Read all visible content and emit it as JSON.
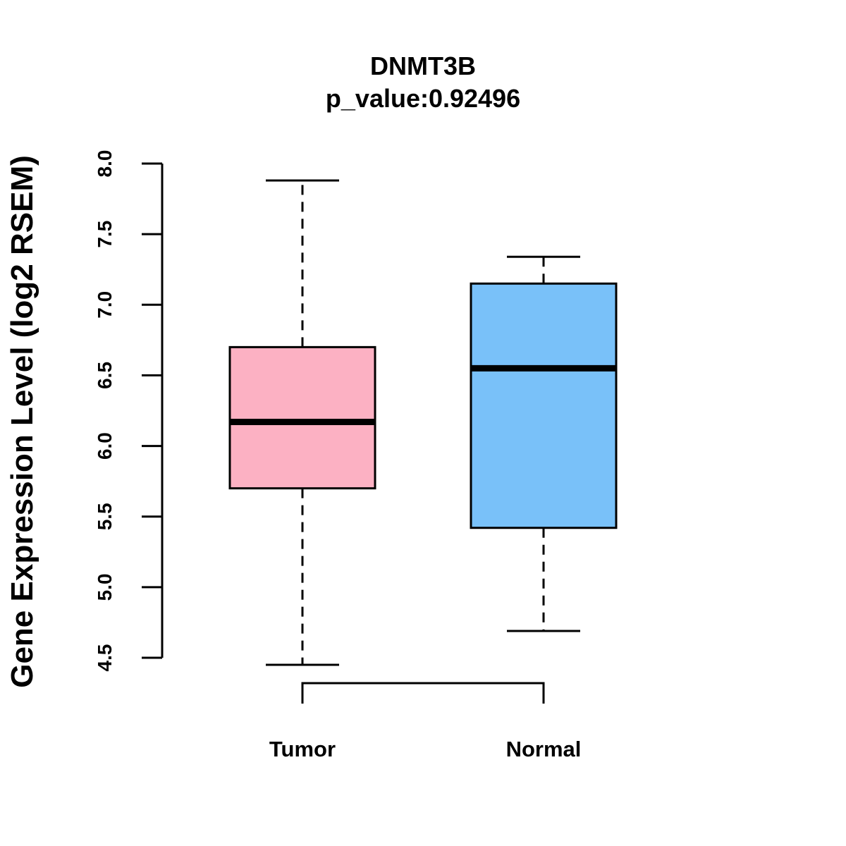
{
  "chart_data": {
    "type": "boxplot",
    "title": "DNMT3B",
    "subtitle": "p_value:0.92496",
    "xlabel": "",
    "ylabel": "Gene Expression Level (log2 RSEM)",
    "ylim": [
      4.5,
      8.0
    ],
    "yticks": [
      "4.5",
      "5.0",
      "5.5",
      "6.0",
      "6.5",
      "7.0",
      "7.5",
      "8.0"
    ],
    "categories": [
      "Tumor",
      "Normal"
    ],
    "boxes": [
      {
        "name": "Tumor",
        "min": 4.45,
        "q1": 5.7,
        "median": 6.17,
        "q3": 6.7,
        "max": 7.88,
        "color": "#FCB1C3"
      },
      {
        "name": "Normal",
        "min": 4.69,
        "q1": 5.42,
        "median": 6.55,
        "q3": 7.15,
        "max": 7.34,
        "color": "#79C1F9"
      }
    ],
    "comparison_bracket": {
      "between": [
        "Tumor",
        "Normal"
      ]
    }
  }
}
